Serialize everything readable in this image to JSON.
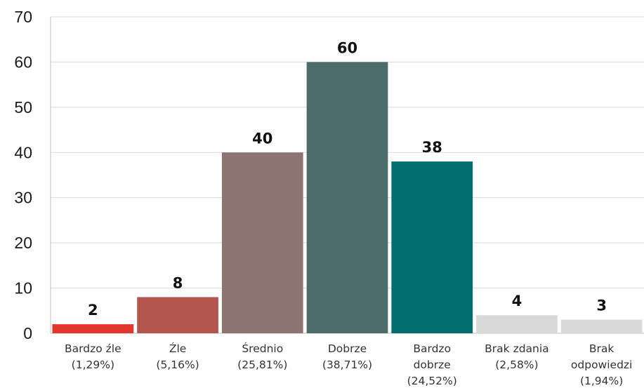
{
  "chart_data": {
    "type": "bar",
    "title": "",
    "xlabel": "",
    "ylabel": "",
    "ylim": [
      0,
      70
    ],
    "yticks": [
      0,
      10,
      20,
      30,
      40,
      50,
      60,
      70
    ],
    "grid": true,
    "categories": [
      [
        "Bardzo źle",
        "(1,29%)"
      ],
      [
        "Źle",
        "(5,16%)"
      ],
      [
        "Średnio",
        "(25,81%)"
      ],
      [
        "Dobrze",
        "(38,71%)"
      ],
      [
        "Bardzo",
        "dobrze",
        "(24,52%)"
      ],
      [
        "Brak zdania",
        "(2,58%)"
      ],
      [
        "Brak",
        "odpowiedzi",
        "(1,94%)"
      ]
    ],
    "values": [
      2,
      8,
      40,
      60,
      38,
      4,
      3
    ],
    "value_labels": [
      "2",
      "8",
      "40",
      "60",
      "38",
      "4",
      "3"
    ],
    "colors": [
      "#e0392b",
      "#b4554f",
      "#8c7470",
      "#4b6c6b",
      "#006e6e",
      "#d9d9d9",
      "#d9d9d9"
    ]
  }
}
